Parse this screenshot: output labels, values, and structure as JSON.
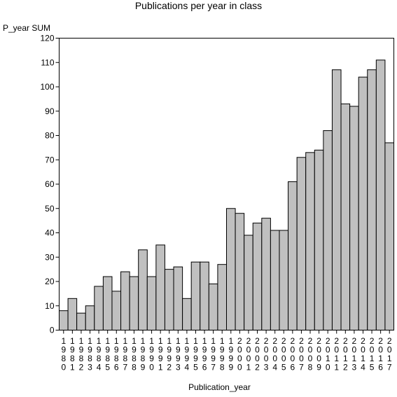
{
  "chart_data": {
    "type": "bar",
    "title": "Publications per year in class",
    "xlabel": "Publication_year",
    "ylabel": "P_year SUM",
    "ylim": [
      0,
      120
    ],
    "yticks": [
      0,
      10,
      20,
      30,
      40,
      50,
      60,
      70,
      80,
      90,
      100,
      110,
      120
    ],
    "grid": false,
    "bar_color": "#c0c0c0",
    "categories": [
      "1980",
      "1981",
      "1982",
      "1983",
      "1984",
      "1985",
      "1986",
      "1987",
      "1988",
      "1989",
      "1990",
      "1991",
      "1992",
      "1993",
      "1994",
      "1995",
      "1996",
      "1997",
      "1998",
      "1999",
      "2000",
      "2001",
      "2002",
      "2003",
      "2004",
      "2005",
      "2006",
      "2007",
      "2008",
      "2009",
      "2010",
      "2011",
      "2012",
      "2013",
      "2014",
      "2015",
      "2016",
      "2017"
    ],
    "values": [
      8,
      13,
      7,
      10,
      18,
      22,
      16,
      24,
      22,
      33,
      22,
      35,
      25,
      26,
      13,
      28,
      28,
      19,
      27,
      50,
      48,
      39,
      44,
      46,
      41,
      41,
      61,
      71,
      73,
      74,
      82,
      107,
      93,
      92,
      104,
      107,
      111,
      77
    ]
  }
}
